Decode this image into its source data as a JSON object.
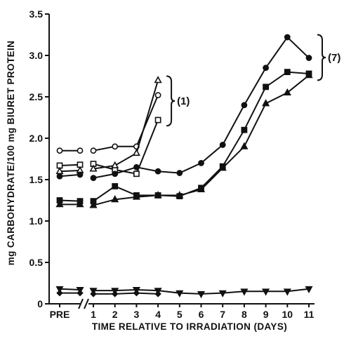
{
  "chart_data": {
    "type": "line",
    "title": "",
    "xlabel": "TIME RELATIVE TO IRRADIATION (DAYS)",
    "ylabel": "mg CARBOHYDRATE/100 mg BIURET PROTEIN",
    "ylim": [
      0,
      3.5
    ],
    "y_ticks": [
      {
        "value": 0,
        "label": "0"
      },
      {
        "value": 0.5,
        "label": "0.5"
      },
      {
        "value": 1.0,
        "label": "1.0"
      },
      {
        "value": 1.5,
        "label": "1.5"
      },
      {
        "value": 2.0,
        "label": "2.0"
      },
      {
        "value": 2.5,
        "label": "2.5"
      },
      {
        "value": 3.0,
        "label": "3.0"
      },
      {
        "value": 3.5,
        "label": "3.5"
      }
    ],
    "x_ticks": [
      {
        "value": -1,
        "label": "PRE"
      },
      {
        "value": 1,
        "label": "1"
      },
      {
        "value": 2,
        "label": "2"
      },
      {
        "value": 3,
        "label": "3"
      },
      {
        "value": 4,
        "label": "4"
      },
      {
        "value": 5,
        "label": "5"
      },
      {
        "value": 6,
        "label": "6"
      },
      {
        "value": 7,
        "label": "7"
      },
      {
        "value": 8,
        "label": "8"
      },
      {
        "value": 9,
        "label": "9"
      },
      {
        "value": 10,
        "label": "10"
      },
      {
        "value": 11,
        "label": "11"
      }
    ],
    "axis_break": "between PRE and 1",
    "group_labels": [
      {
        "label": "(1)",
        "applies_to_day": 4
      },
      {
        "label": "(7)",
        "applies_to_day": 11
      }
    ],
    "series": [
      {
        "marker": "open-circle",
        "x": [
          -1,
          0,
          1,
          2,
          3,
          4
        ],
        "y": [
          1.85,
          1.85,
          1.85,
          1.9,
          1.9,
          2.52
        ]
      },
      {
        "marker": "open-square",
        "x": [
          -1,
          0,
          1,
          2,
          3,
          4
        ],
        "y": [
          1.67,
          1.68,
          1.69,
          1.62,
          1.57,
          2.22
        ]
      },
      {
        "marker": "open-triangle",
        "x": [
          -1,
          0,
          1,
          2,
          3,
          4
        ],
        "y": [
          1.6,
          1.61,
          1.63,
          1.67,
          1.82,
          2.7
        ]
      },
      {
        "marker": "filled-circle",
        "x": [
          -1,
          0,
          1,
          2,
          3,
          4,
          5,
          6,
          7,
          8,
          9,
          10,
          11
        ],
        "y": [
          1.54,
          1.56,
          1.52,
          1.57,
          1.65,
          1.6,
          1.58,
          1.7,
          1.92,
          2.4,
          2.85,
          3.22,
          2.97
        ]
      },
      {
        "marker": "filled-square",
        "x": [
          -1,
          0,
          1,
          2,
          3,
          4,
          5,
          6,
          7,
          8,
          9,
          10,
          11
        ],
        "y": [
          1.25,
          1.24,
          1.24,
          1.42,
          1.31,
          1.31,
          1.3,
          1.4,
          1.66,
          2.1,
          2.62,
          2.8,
          2.78
        ]
      },
      {
        "marker": "filled-triangle",
        "x": [
          -1,
          0,
          1,
          2,
          3,
          4,
          5,
          6,
          7,
          8,
          9,
          10,
          11
        ],
        "y": [
          1.2,
          1.2,
          1.19,
          1.26,
          1.29,
          1.31,
          1.31,
          1.38,
          1.64,
          1.9,
          2.42,
          2.55,
          2.76
        ]
      },
      {
        "marker": "filled-down-triangle",
        "x": [
          -1,
          0,
          1,
          2,
          3,
          4,
          5,
          6,
          7,
          8,
          9,
          10,
          11
        ],
        "y": [
          0.18,
          0.17,
          0.16,
          0.16,
          0.17,
          0.16,
          0.13,
          0.12,
          0.13,
          0.15,
          0.15,
          0.15,
          0.18
        ]
      },
      {
        "marker": "filled-diamond",
        "x": [
          -1,
          0,
          1,
          2,
          3,
          4
        ],
        "y": [
          0.13,
          0.13,
          0.12,
          0.12,
          0.13,
          0.12
        ]
      }
    ]
  }
}
